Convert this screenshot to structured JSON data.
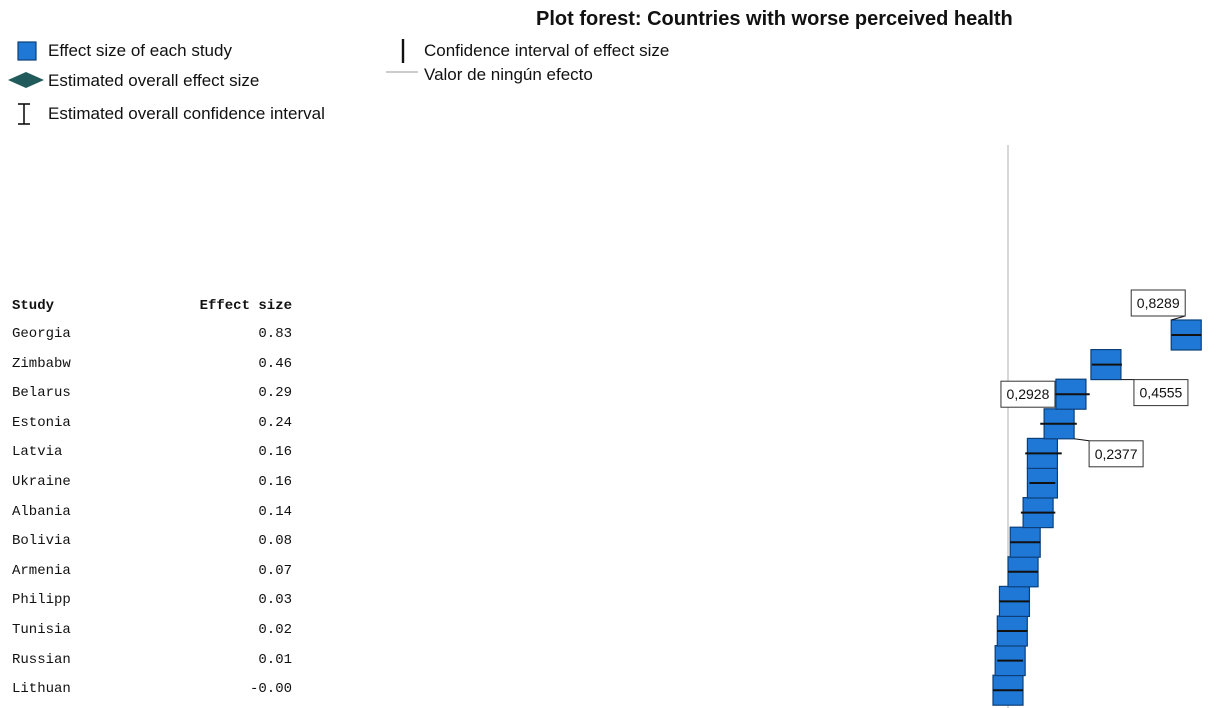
{
  "chart_data": {
    "type": "forest",
    "title": "Plot forest: Countries with worse perceived health",
    "legend": {
      "study_effect": "Effect size of each study",
      "overall_effect": "Estimated overall effect size",
      "overall_ci": "Estimated overall confidence interval",
      "ci": "Confidence interval of effect size",
      "no_effect": "Valor de ningún efecto"
    },
    "table": {
      "col_study": "Study",
      "col_effect": "Effect size"
    },
    "studies": [
      {
        "name": "Georgia",
        "effect_label": "0.83",
        "value": 0.8289,
        "ci": [
          0.76,
          0.9
        ]
      },
      {
        "name": "Zimbabw",
        "effect_label": "0.46",
        "value": 0.4555,
        "ci": [
          0.39,
          0.53
        ]
      },
      {
        "name": "Belarus",
        "effect_label": "0.29",
        "value": 0.2928,
        "ci": [
          0.21,
          0.38
        ]
      },
      {
        "name": "Estonia",
        "effect_label": "0.24",
        "value": 0.2377,
        "ci": [
          0.15,
          0.32
        ]
      },
      {
        "name": "Latvia",
        "effect_label": "0.16",
        "value": 0.16,
        "ci": [
          0.08,
          0.25
        ]
      },
      {
        "name": "Ukraine",
        "effect_label": "0.16",
        "value": 0.16,
        "ci": [
          0.1,
          0.22
        ]
      },
      {
        "name": "Albania",
        "effect_label": "0.14",
        "value": 0.14,
        "ci": [
          0.06,
          0.22
        ]
      },
      {
        "name": "Bolivia",
        "effect_label": "0.08",
        "value": 0.08,
        "ci": [
          0.01,
          0.15
        ]
      },
      {
        "name": "Armenia",
        "effect_label": "0.07",
        "value": 0.07,
        "ci": [
          0.0,
          0.14
        ]
      },
      {
        "name": "Philipp",
        "effect_label": "0.03",
        "value": 0.03,
        "ci": [
          -0.04,
          0.1
        ]
      },
      {
        "name": "Tunisia",
        "effect_label": "0.02",
        "value": 0.02,
        "ci": [
          -0.05,
          0.09
        ]
      },
      {
        "name": "Russian",
        "effect_label": "0.01",
        "value": 0.01,
        "ci": [
          -0.05,
          0.07
        ]
      },
      {
        "name": "Lithuan",
        "effect_label": "-0.00",
        "value": 0.0,
        "ci": [
          -0.07,
          0.07
        ]
      }
    ],
    "annotations": [
      {
        "study": "Georgia",
        "text": "0,8289"
      },
      {
        "study": "Zimbabw",
        "text": "0,4555"
      },
      {
        "study": "Belarus",
        "text": "0,2928"
      },
      {
        "study": "Estonia",
        "text": "0,2377"
      }
    ],
    "no_effect_value": 0,
    "marker_color": "#1f78d6",
    "marker_edge": "#0b3f7a",
    "diamond_color": "#215a5a"
  }
}
